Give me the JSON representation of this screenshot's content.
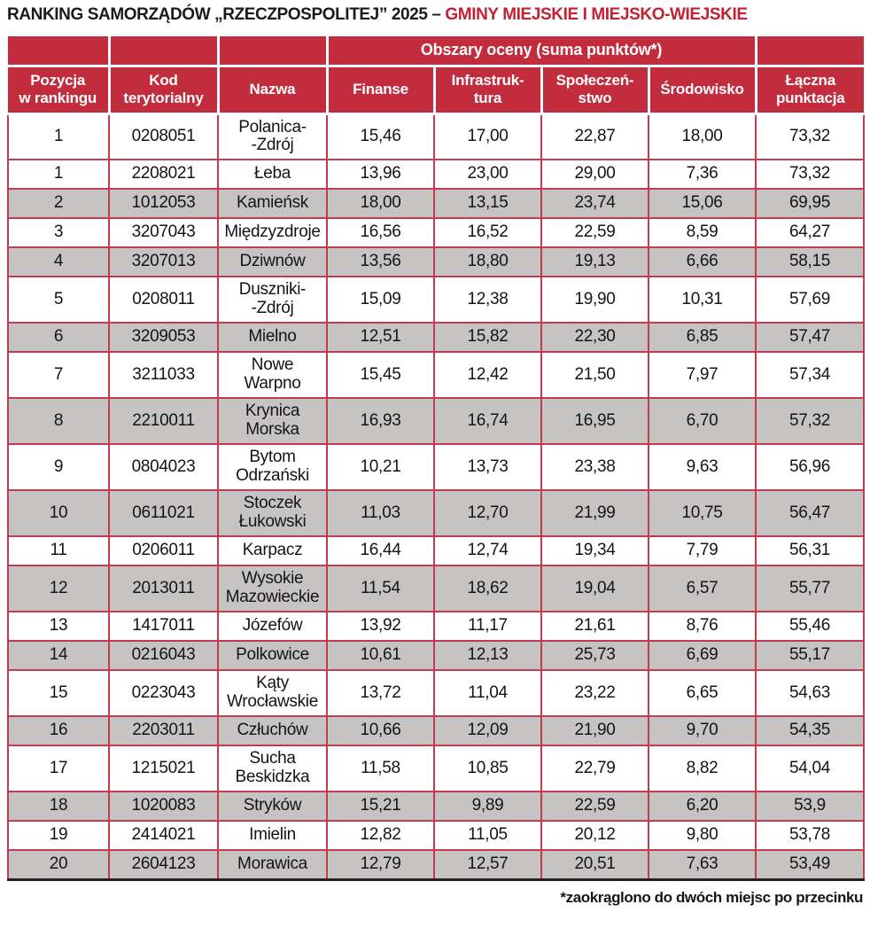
{
  "title": {
    "prefix": "RANKING SAMORZĄDÓW „RZECZPOSPOLITEJ” 2025 – ",
    "highlight": "GMINY MIEJSKIE I MIEJSKO-WIEJSKIE"
  },
  "chart_data": {
    "type": "table",
    "group_header": "Obszary oceny (suma punktów*)",
    "group_span_columns": [
      "Finanse",
      "Infrastruktura",
      "Społeczeństwo",
      "Środowisko"
    ],
    "columns": [
      "Pozycja\nw rankingu",
      "Kod\nterytorialny",
      "Nazwa",
      "Finanse",
      "Infrastruk-\ntura",
      "Społeczeń-\nstwo",
      "Środowisko",
      "Łączna\npunktacja"
    ],
    "rows": [
      [
        "1",
        "0208051",
        "Polanica-\n-Zdrój",
        "15,46",
        "17,00",
        "22,87",
        "18,00",
        "73,32"
      ],
      [
        "1",
        "2208021",
        "Łeba",
        "13,96",
        "23,00",
        "29,00",
        "7,36",
        "73,32"
      ],
      [
        "2",
        "1012053",
        "Kamieńsk",
        "18,00",
        "13,15",
        "23,74",
        "15,06",
        "69,95"
      ],
      [
        "3",
        "3207043",
        "Międzyzdroje",
        "16,56",
        "16,52",
        "22,59",
        "8,59",
        "64,27"
      ],
      [
        "4",
        "3207013",
        "Dziwnów",
        "13,56",
        "18,80",
        "19,13",
        "6,66",
        "58,15"
      ],
      [
        "5",
        "0208011",
        "Duszniki-\n-Zdrój",
        "15,09",
        "12,38",
        "19,90",
        "10,31",
        "57,69"
      ],
      [
        "6",
        "3209053",
        "Mielno",
        "12,51",
        "15,82",
        "22,30",
        "6,85",
        "57,47"
      ],
      [
        "7",
        "3211033",
        "Nowe\nWarpno",
        "15,45",
        "12,42",
        "21,50",
        "7,97",
        "57,34"
      ],
      [
        "8",
        "2210011",
        "Krynica\nMorska",
        "16,93",
        "16,74",
        "16,95",
        "6,70",
        "57,32"
      ],
      [
        "9",
        "0804023",
        "Bytom\nOdrzański",
        "10,21",
        "13,73",
        "23,38",
        "9,63",
        "56,96"
      ],
      [
        "10",
        "0611021",
        "Stoczek\nŁukowski",
        "11,03",
        "12,70",
        "21,99",
        "10,75",
        "56,47"
      ],
      [
        "11",
        "0206011",
        "Karpacz",
        "16,44",
        "12,74",
        "19,34",
        "7,79",
        "56,31"
      ],
      [
        "12",
        "2013011",
        "Wysokie\nMazowieckie",
        "11,54",
        "18,62",
        "19,04",
        "6,57",
        "55,77"
      ],
      [
        "13",
        "1417011",
        "Józefów",
        "13,92",
        "11,17",
        "21,61",
        "8,76",
        "55,46"
      ],
      [
        "14",
        "0216043",
        "Polkowice",
        "10,61",
        "12,13",
        "25,73",
        "6,69",
        "55,17"
      ],
      [
        "15",
        "0223043",
        "Kąty\nWrocławskie",
        "13,72",
        "11,04",
        "23,22",
        "6,65",
        "54,63"
      ],
      [
        "16",
        "2203011",
        "Człuchów",
        "10,66",
        "12,09",
        "21,90",
        "9,70",
        "54,35"
      ],
      [
        "17",
        "1215021",
        "Sucha\nBeskidzka",
        "11,58",
        "10,85",
        "22,79",
        "8,82",
        "54,04"
      ],
      [
        "18",
        "1020083",
        "Stryków",
        "15,21",
        "9,89",
        "22,59",
        "6,20",
        "53,9"
      ],
      [
        "19",
        "2414021",
        "Imielin",
        "12,82",
        "11,05",
        "20,12",
        "9,80",
        "53,78"
      ],
      [
        "20",
        "2604123",
        "Morawica",
        "12,79",
        "12,57",
        "20,51",
        "7,63",
        "53,49"
      ]
    ]
  },
  "footnote": "*zaokrąglono do dwóch miejsc po przecinku",
  "colors": {
    "header_red": "#c22c3c",
    "accent_red": "#c22233",
    "row_gray": "#c6c3c3",
    "grid_red": "#bf3d4c",
    "bottom_rule": "#231f20"
  }
}
